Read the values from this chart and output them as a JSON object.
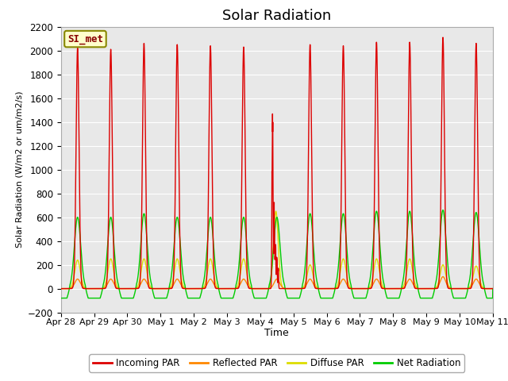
{
  "title": "Solar Radiation",
  "ylabel": "Solar Radiation (W/m2 or um/m2/s)",
  "xlabel": "Time",
  "ylim": [
    -200,
    2200
  ],
  "yticks": [
    -200,
    0,
    200,
    400,
    600,
    800,
    1000,
    1200,
    1400,
    1600,
    1800,
    2000,
    2200
  ],
  "x_tick_labels": [
    "Apr 28",
    "Apr 29",
    "Apr 30",
    "May 1",
    "May 2",
    "May 3",
    "May 4",
    "May 5",
    "May 6",
    "May 7",
    "May 8",
    "May 9",
    "May 10",
    "May 11"
  ],
  "station_label": "SI_met",
  "bg_color": "#e8e8e8",
  "colors": {
    "incoming": "#dd0000",
    "reflected": "#ff8800",
    "diffuse": "#dddd00",
    "net": "#00cc00"
  },
  "legend": [
    "Incoming PAR",
    "Reflected PAR",
    "Diffuse PAR",
    "Net Radiation"
  ],
  "n_days": 13,
  "title_fontsize": 13,
  "incoming_peaks": [
    2020,
    2010,
    2060,
    2050,
    2040,
    2030,
    1300,
    2050,
    2040,
    2070,
    2070,
    2110,
    2060
  ],
  "net_peaks": [
    600,
    600,
    630,
    600,
    600,
    600,
    600,
    630,
    630,
    650,
    650,
    660,
    640
  ],
  "reflected_peaks": [
    80,
    80,
    80,
    80,
    80,
    80,
    80,
    80,
    80,
    80,
    80,
    100,
    80
  ],
  "diffuse_peaks": [
    240,
    250,
    250,
    250,
    250,
    250,
    650,
    200,
    250,
    250,
    250,
    200,
    190
  ],
  "night_net": -80
}
